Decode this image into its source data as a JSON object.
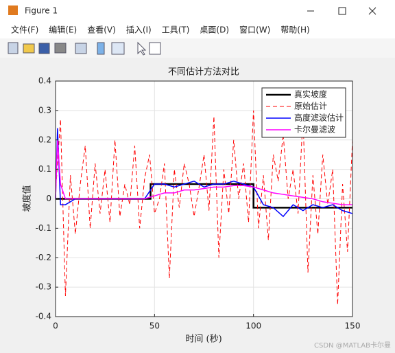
{
  "window": {
    "title": "Figure 1",
    "menu": [
      "文件(F)",
      "编辑(E)",
      "查看(V)",
      "插入(I)",
      "工具(T)",
      "桌面(D)",
      "窗口(W)",
      "帮助(H)"
    ],
    "watermark": "CSDN @MATLAB卡尔曼"
  },
  "chart_data": {
    "type": "line",
    "title": "不同估计方法对比",
    "x_label": "时间 (秒)",
    "y_label": "坡度值",
    "xlim": [
      0,
      150
    ],
    "xticks": [
      0,
      50,
      100,
      150
    ],
    "ylim": [
      -0.4,
      0.4
    ],
    "yticks": [
      -0.4,
      -0.3,
      -0.2,
      -0.1,
      0,
      0.1,
      0.2,
      0.3,
      0.4
    ],
    "grid": true,
    "legend": "upper-right",
    "series": [
      {
        "name": "真实坡度",
        "color": "#000000",
        "style": "solid",
        "width": 2.5,
        "x": [
          0,
          48,
          48,
          100,
          100,
          150
        ],
        "values": [
          0,
          0,
          0.05,
          0.05,
          -0.03,
          -0.03
        ]
      },
      {
        "name": "原始估计",
        "color": "#ff0000",
        "style": "dashed",
        "width": 1,
        "x": [
          0,
          2.5,
          5,
          7.5,
          10,
          12.5,
          15,
          17.5,
          20,
          22.5,
          25,
          27.5,
          30,
          32.5,
          35,
          37.5,
          40,
          42.5,
          45,
          47.5,
          50,
          52.5,
          55,
          57.5,
          60,
          62.5,
          65,
          67.5,
          70,
          72.5,
          75,
          77.5,
          80,
          82.5,
          85,
          87.5,
          90,
          92.5,
          95,
          97.5,
          100,
          102.5,
          105,
          107.5,
          110,
          112.5,
          115,
          117.5,
          120,
          122.5,
          125,
          127.5,
          130,
          132.5,
          135,
          137.5,
          140,
          142.5,
          145,
          147.5,
          150
        ],
        "values": [
          0.02,
          0.27,
          -0.33,
          0.08,
          -0.12,
          0.05,
          0.18,
          -0.1,
          0.12,
          -0.05,
          0.1,
          -0.08,
          0.2,
          -0.06,
          0.05,
          -0.02,
          0.18,
          -0.1,
          0.07,
          0.15,
          -0.05,
          0.0,
          0.12,
          -0.27,
          0.1,
          -0.03,
          0.12,
          0.05,
          -0.06,
          0.04,
          0.15,
          -0.04,
          0.28,
          -0.2,
          0.1,
          -0.05,
          0.2,
          0.0,
          0.12,
          -0.08,
          0.3,
          -0.1,
          0.08,
          -0.14,
          0.15,
          0.06,
          0.22,
          0.0,
          0.1,
          -0.05,
          0.28,
          -0.25,
          0.08,
          -0.12,
          0.15,
          -0.02,
          0.1,
          -0.36,
          0.05,
          -0.18,
          0.2
        ]
      },
      {
        "name": "高度滤波估计",
        "color": "#0000ff",
        "style": "solid",
        "width": 1.5,
        "x": [
          0,
          1,
          2.5,
          5,
          10,
          15,
          20,
          25,
          30,
          35,
          40,
          45,
          50,
          55,
          60,
          65,
          70,
          75,
          80,
          85,
          90,
          95,
          100,
          105,
          110,
          115,
          120,
          125,
          130,
          135,
          140,
          145,
          150
        ],
        "values": [
          0,
          0.24,
          -0.02,
          -0.02,
          0,
          0,
          0,
          0,
          0,
          0,
          0,
          0,
          0.05,
          0.05,
          0.04,
          0.05,
          0.06,
          0.04,
          0.05,
          0.05,
          0.06,
          0.05,
          0.04,
          -0.02,
          -0.03,
          -0.06,
          -0.02,
          -0.04,
          -0.02,
          -0.03,
          -0.02,
          -0.04,
          -0.05
        ]
      },
      {
        "name": "卡尔曼滤波",
        "color": "#ff00ff",
        "style": "solid",
        "width": 1.5,
        "x": [
          0,
          1,
          2.5,
          5,
          10,
          15,
          20,
          25,
          30,
          35,
          40,
          45,
          50,
          55,
          60,
          65,
          70,
          75,
          80,
          85,
          90,
          95,
          100,
          105,
          110,
          115,
          120,
          125,
          130,
          135,
          140,
          145,
          150
        ],
        "values": [
          0,
          0.2,
          0.05,
          0,
          0,
          0,
          0,
          0,
          0,
          0,
          0,
          0,
          0.01,
          0.02,
          0.02,
          0.03,
          0.03,
          0.035,
          0.04,
          0.04,
          0.045,
          0.045,
          0.04,
          0.03,
          0.02,
          0.015,
          0.01,
          0.005,
          0.0,
          -0.01,
          -0.015,
          -0.02,
          -0.02
        ]
      }
    ]
  }
}
